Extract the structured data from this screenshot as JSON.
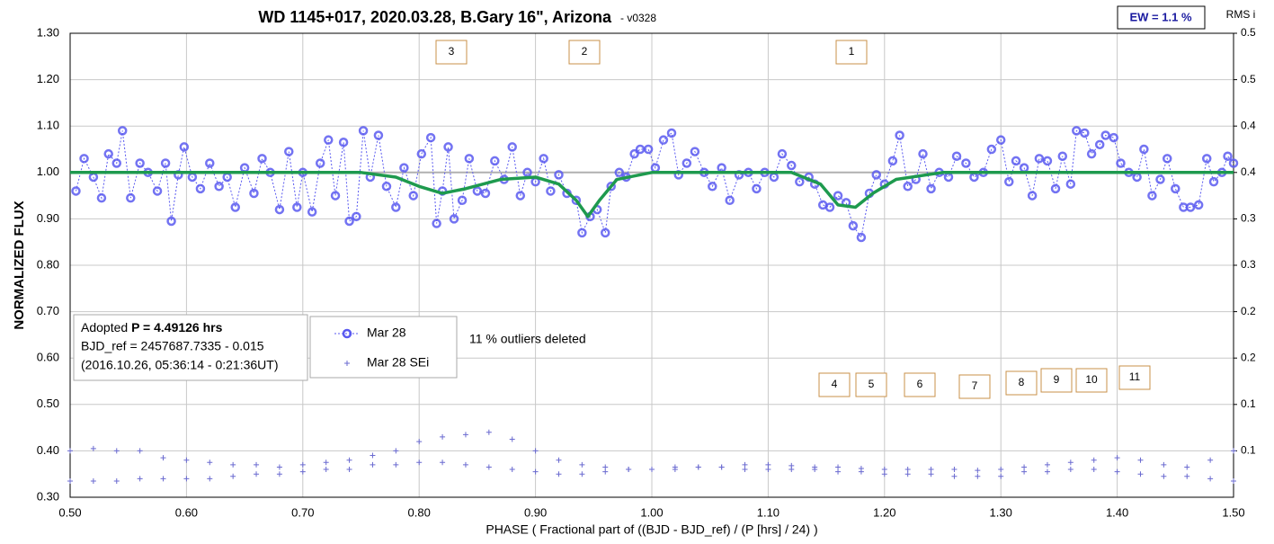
{
  "chart_data": {
    "type": "scatter",
    "title": "WD 1145+017, 2020.03.28, B.Gary 16\", Arizona",
    "subtitle": "-  v0328",
    "ew_label": "EW = 1.1 %",
    "y2_label": "RMS i",
    "xlabel": "PHASE ( Fractional part of ((BJD - BJD_ref) / (P [hrs] / 24) )",
    "ylabel": "NORMALIZED FLUX",
    "annotation": "11 % outliers deleted",
    "info": [
      "Adopted ",
      "P = 4.49126 hrs",
      "BJD_ref = 2457687.7335 - 0.015",
      "(2016.10.26, 05:36:14 - 0:21:36UT)"
    ],
    "dip_labels": [
      "3",
      "2",
      "1",
      "4",
      "5",
      "6",
      "7",
      "8",
      "9",
      "10",
      "11"
    ],
    "xlim": [
      0.5,
      1.5
    ],
    "ylim": [
      0.3,
      1.3
    ],
    "y2lim": [
      0,
      0.5
    ],
    "xticks": [
      {
        "value": 0.5,
        "label": "0.50"
      },
      {
        "value": 0.6,
        "label": "0.60"
      },
      {
        "value": 0.7,
        "label": "0.70"
      },
      {
        "value": 0.8,
        "label": "0.80"
      },
      {
        "value": 0.9,
        "label": "0.90"
      },
      {
        "value": 1.0,
        "label": "1.00"
      },
      {
        "value": 1.1,
        "label": "1.10"
      },
      {
        "value": 1.2,
        "label": "1.20"
      },
      {
        "value": 1.3,
        "label": "1.30"
      },
      {
        "value": 1.4,
        "label": "1.40"
      },
      {
        "value": 1.5,
        "label": "1.50"
      }
    ],
    "yticks": [
      {
        "value": 0.3,
        "label": "0.30"
      },
      {
        "value": 0.4,
        "label": "0.40"
      },
      {
        "value": 0.5,
        "label": "0.50"
      },
      {
        "value": 0.6,
        "label": "0.60"
      },
      {
        "value": 0.7,
        "label": "0.70"
      },
      {
        "value": 0.8,
        "label": "0.80"
      },
      {
        "value": 0.9,
        "label": "0.90"
      },
      {
        "value": 1.0,
        "label": "1.00"
      },
      {
        "value": 1.1,
        "label": "1.10"
      },
      {
        "value": 1.2,
        "label": "1.20"
      },
      {
        "value": 1.3,
        "label": "1.30"
      }
    ],
    "y2ticks": [
      {
        "value": 0.05,
        "label": "0.1"
      },
      0.1,
      {
        "value": 0.15,
        "label": "0.2"
      },
      0.2,
      {
        "value": 0.25,
        "label": "0.3"
      },
      0.3,
      {
        "value": 0.35,
        "label": "0.4"
      },
      0.4,
      {
        "value": 0.45,
        "label": "0.5"
      },
      0.5
    ],
    "grid": true,
    "reference_line": 1.0,
    "series": [
      {
        "name": "Mar 28",
        "color": "#5a5af0",
        "marker": "circle",
        "x": [
          0.505,
          0.512,
          0.52,
          0.527,
          0.533,
          0.54,
          0.545,
          0.552,
          0.56,
          0.567,
          0.575,
          0.582,
          0.587,
          0.593,
          0.598,
          0.605,
          0.612,
          0.62,
          0.628,
          0.635,
          0.642,
          0.65,
          0.658,
          0.665,
          0.672,
          0.68,
          0.688,
          0.695,
          0.7,
          0.708,
          0.715,
          0.722,
          0.728,
          0.735,
          0.74,
          0.746,
          0.752,
          0.758,
          0.765,
          0.772,
          0.78,
          0.787,
          0.795,
          0.802,
          0.81,
          0.815,
          0.82,
          0.825,
          0.83,
          0.837,
          0.843,
          0.85,
          0.857,
          0.865,
          0.873,
          0.88,
          0.887,
          0.893,
          0.9,
          0.907,
          0.913,
          0.92,
          0.927,
          0.935,
          0.94,
          0.947,
          0.953,
          0.96,
          0.965,
          0.972,
          0.978,
          0.985,
          0.99,
          0.997,
          1.003,
          1.01,
          1.017,
          1.023,
          1.03,
          1.037,
          1.045,
          1.052,
          1.06,
          1.067,
          1.075,
          1.083,
          1.09,
          1.097,
          1.105,
          1.112,
          1.12,
          1.127,
          1.135,
          1.14,
          1.147,
          1.153,
          1.16,
          1.167,
          1.173,
          1.18,
          1.187,
          1.193,
          1.2,
          1.207,
          1.213,
          1.22,
          1.227,
          1.233,
          1.24,
          1.247,
          1.255,
          1.262,
          1.27,
          1.277,
          1.285,
          1.292,
          1.3,
          1.307,
          1.313,
          1.32,
          1.327,
          1.333,
          1.34,
          1.347,
          1.353,
          1.36,
          1.365,
          1.372,
          1.378,
          1.385,
          1.39,
          1.397,
          1.403,
          1.41,
          1.417,
          1.423,
          1.43,
          1.437,
          1.443,
          1.45,
          1.457,
          1.463,
          1.47,
          1.477,
          1.483,
          1.49,
          1.495,
          1.5
        ],
        "values": [
          0.96,
          1.03,
          0.99,
          0.945,
          1.04,
          1.02,
          1.09,
          0.945,
          1.02,
          1.0,
          0.96,
          1.02,
          0.895,
          0.995,
          1.055,
          0.99,
          0.965,
          1.02,
          0.97,
          0.99,
          0.925,
          1.01,
          0.955,
          1.03,
          1.0,
          0.92,
          1.045,
          0.925,
          1.0,
          0.915,
          1.02,
          1.07,
          0.95,
          1.065,
          0.895,
          0.905,
          1.09,
          0.99,
          1.08,
          0.97,
          0.925,
          1.01,
          0.95,
          1.04,
          1.075,
          0.89,
          0.96,
          1.055,
          0.9,
          0.94,
          1.03,
          0.96,
          0.955,
          1.025,
          0.985,
          1.055,
          0.95,
          1.0,
          0.98,
          1.03,
          0.96,
          0.995,
          0.955,
          0.94,
          0.87,
          0.905,
          0.92,
          0.87,
          0.97,
          1.0,
          0.99,
          1.04,
          1.05,
          1.05,
          1.01,
          1.07,
          1.085,
          0.995,
          1.02,
          1.045,
          1.0,
          0.97,
          1.01,
          0.94,
          0.995,
          1.0,
          0.965,
          1.0,
          0.99,
          1.04,
          1.015,
          0.98,
          0.99,
          0.975,
          0.93,
          0.925,
          0.95,
          0.935,
          0.885,
          0.86,
          0.955,
          0.995,
          0.975,
          1.025,
          1.08,
          0.97,
          0.985,
          1.04,
          0.965,
          1.0,
          0.99,
          1.035,
          1.02,
          0.99,
          1.0,
          1.05,
          1.07,
          0.98,
          1.025,
          1.01,
          0.95,
          1.03,
          1.025,
          0.965,
          1.035,
          0.975,
          1.09,
          1.085,
          1.04,
          1.06,
          1.08,
          1.075,
          1.02,
          1.0,
          0.99,
          1.05,
          0.95,
          0.985,
          1.03,
          0.965,
          0.925,
          0.925,
          0.93,
          1.03,
          0.98,
          1.0,
          1.035,
          1.02
        ]
      },
      {
        "name": "Mar 28 SEi",
        "color": "#6a6ad0",
        "marker": "plus",
        "x": [
          0.5,
          0.52,
          0.54,
          0.56,
          0.58,
          0.6,
          0.62,
          0.64,
          0.66,
          0.68,
          0.7,
          0.72,
          0.74,
          0.76,
          0.78,
          0.8,
          0.82,
          0.84,
          0.86,
          0.88,
          0.9,
          0.92,
          0.94,
          0.96,
          0.98,
          1.0,
          1.02,
          1.04,
          1.06,
          1.08,
          1.1,
          1.12,
          1.14,
          1.16,
          1.18,
          1.2,
          1.22,
          1.24,
          1.26,
          1.28,
          1.3,
          1.32,
          1.34,
          1.36,
          1.38,
          1.4,
          1.42,
          1.44,
          1.46,
          1.48,
          1.5,
          0.5,
          0.52,
          0.54,
          0.56,
          0.58,
          0.6,
          0.62,
          0.64,
          0.66,
          0.68,
          0.7,
          0.72,
          0.74,
          0.76,
          0.78,
          0.8,
          0.82,
          0.84,
          0.86,
          0.88,
          0.9,
          0.92,
          0.94,
          0.96,
          0.98,
          1.0,
          1.02,
          1.04,
          1.06,
          1.08,
          1.1,
          1.12,
          1.14,
          1.16,
          1.18,
          1.2,
          1.22,
          1.24,
          1.26,
          1.28,
          1.3,
          1.32,
          1.34,
          1.36,
          1.38,
          1.4,
          1.42,
          1.44,
          1.46,
          1.48,
          1.5
        ],
        "values": [
          0.4,
          0.405,
          0.4,
          0.4,
          0.385,
          0.38,
          0.375,
          0.37,
          0.37,
          0.365,
          0.37,
          0.375,
          0.38,
          0.39,
          0.4,
          0.42,
          0.43,
          0.435,
          0.44,
          0.425,
          0.4,
          0.38,
          0.37,
          0.365,
          0.36,
          0.36,
          0.365,
          0.365,
          0.365,
          0.37,
          0.37,
          0.368,
          0.365,
          0.365,
          0.362,
          0.36,
          0.36,
          0.36,
          0.36,
          0.358,
          0.36,
          0.365,
          0.37,
          0.375,
          0.38,
          0.385,
          0.38,
          0.37,
          0.365,
          0.38,
          0.4,
          0.335,
          0.335,
          0.335,
          0.34,
          0.34,
          0.34,
          0.34,
          0.345,
          0.35,
          0.35,
          0.355,
          0.36,
          0.36,
          0.37,
          0.37,
          0.375,
          0.375,
          0.37,
          0.365,
          0.36,
          0.355,
          0.35,
          0.35,
          0.355,
          0.36,
          0.36,
          0.36,
          0.365,
          0.365,
          0.36,
          0.36,
          0.36,
          0.36,
          0.355,
          0.355,
          0.35,
          0.35,
          0.35,
          0.345,
          0.345,
          0.345,
          0.355,
          0.355,
          0.36,
          0.36,
          0.355,
          0.35,
          0.345,
          0.345,
          0.34,
          0.335
        ]
      }
    ],
    "model": {
      "color": "#1e9a4e",
      "x": [
        0.5,
        0.75,
        0.78,
        0.8,
        0.82,
        0.84,
        0.87,
        0.9,
        0.92,
        0.935,
        0.945,
        0.955,
        0.97,
        1.0,
        1.12,
        1.145,
        1.16,
        1.175,
        1.19,
        1.21,
        1.25,
        1.5
      ],
      "values": [
        1.0,
        1.0,
        0.99,
        0.97,
        0.955,
        0.965,
        0.985,
        0.99,
        0.975,
        0.94,
        0.905,
        0.94,
        0.985,
        1.0,
        1.0,
        0.975,
        0.93,
        0.925,
        0.955,
        0.985,
        1.0,
        1.0
      ]
    }
  }
}
